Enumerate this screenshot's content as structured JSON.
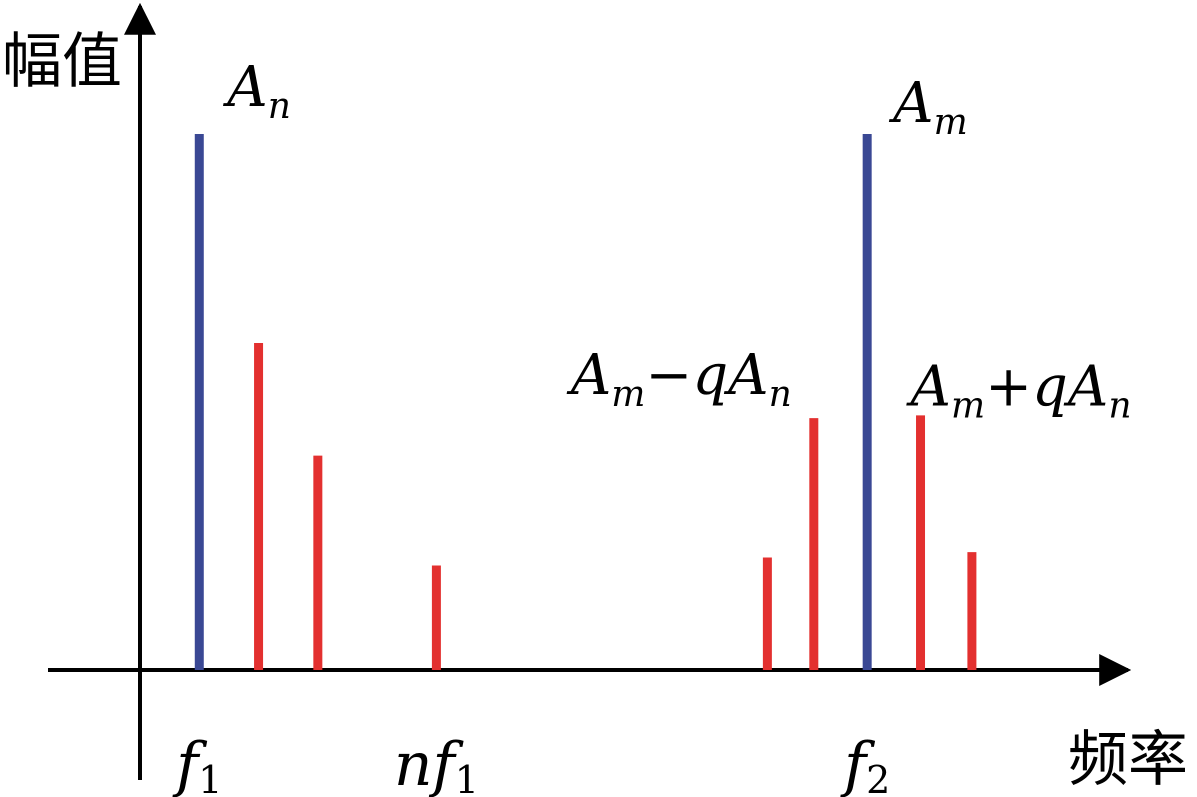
{
  "chart_data": {
    "type": "bar",
    "axis_labels": {
      "y": "幅值",
      "x": "频率"
    },
    "colors": {
      "fundamental": "#3a4894",
      "sideband": "#e3302f",
      "axis": "#000000"
    },
    "lines": [
      {
        "id": "fundamental-1",
        "x": 0.6,
        "value": 1.0,
        "kind": "fundamental",
        "annotation": {
          "main": "A",
          "sub": "n"
        }
      },
      {
        "id": "harmonic-2",
        "x": 1.2,
        "value": 0.61,
        "kind": "sideband"
      },
      {
        "id": "harmonic-3",
        "x": 1.8,
        "value": 0.4,
        "kind": "sideband"
      },
      {
        "id": "harmonic-n",
        "x": 3.0,
        "value": 0.195,
        "kind": "sideband"
      },
      {
        "id": "side-minus-2",
        "x": 6.35,
        "value": 0.21,
        "kind": "sideband"
      },
      {
        "id": "side-minus-1",
        "x": 6.82,
        "value": 0.47,
        "kind": "sideband",
        "annotation": {
          "parts": [
            {
              "t": "A"
            },
            {
              "t": "m",
              "sub": true
            },
            {
              "t": "−",
              "upright": true
            },
            {
              "t": "qA"
            },
            {
              "t": "n",
              "sub": true
            }
          ]
        }
      },
      {
        "id": "fundamental-2",
        "x": 7.36,
        "value": 1.0,
        "kind": "fundamental",
        "annotation": {
          "main": "A",
          "sub": "m"
        }
      },
      {
        "id": "side-plus-1",
        "x": 7.9,
        "value": 0.475,
        "kind": "sideband",
        "annotation": {
          "parts": [
            {
              "t": "A"
            },
            {
              "t": "m",
              "sub": true
            },
            {
              "t": "+",
              "upright": true
            },
            {
              "t": "qA"
            },
            {
              "t": "n",
              "sub": true
            }
          ]
        }
      },
      {
        "id": "side-plus-2",
        "x": 8.42,
        "value": 0.22,
        "kind": "sideband"
      }
    ],
    "x_ticks": [
      {
        "x": 0.6,
        "main": "f",
        "sub": "1"
      },
      {
        "x": 3.0,
        "main": "nf",
        "sub": "1"
      },
      {
        "x": 7.36,
        "main": "f",
        "sub": "2"
      }
    ],
    "xlim": [
      0,
      10
    ],
    "ylim": [
      0,
      1.2
    ],
    "grid": false,
    "legend": "none"
  }
}
